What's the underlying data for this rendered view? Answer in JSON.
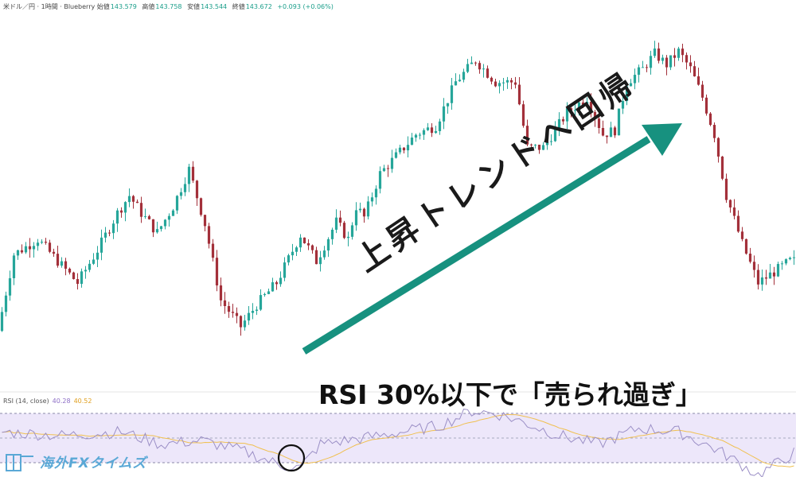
{
  "header": {
    "symbol": "米ドル／円 · 1時間 · Blueberry",
    "open_label": "始値",
    "open": "143.579",
    "high_label": "高値",
    "high": "143.758",
    "low_label": "安値",
    "low": "143.544",
    "close_label": "終値",
    "close": "143.672",
    "change": "+0.093 (+0.06%)"
  },
  "rsi_header": {
    "label": "RSI (14, close)",
    "rsi_value": "40.28",
    "ma_value": "40.52"
  },
  "annotations": {
    "trend": "上昇トレンドへ回帰",
    "rsi": "RSI 30%以下で「売られ過ぎ」"
  },
  "logo": {
    "text": "海外FXタイムズ"
  },
  "colors": {
    "up": "#26a69a",
    "down": "#a3303a",
    "rsi_line": "#9b8fc6",
    "rsi_ma": "#f0c050",
    "rsi_band": "#ede7fa",
    "arrow": "#17917f"
  },
  "chart_data": {
    "type": "candlestick",
    "key_prices_x": [
      0,
      4,
      10,
      20,
      25,
      30,
      33,
      36,
      40,
      44,
      48,
      52,
      56,
      61,
      65,
      70,
      76,
      80,
      85,
      88,
      90,
      92,
      96,
      100,
      105,
      110,
      115,
      120,
      125,
      130,
      133,
      137,
      140,
      143,
      148,
      152,
      155,
      158,
      162,
      165,
      168,
      171,
      174,
      177,
      180,
      183,
      187,
      191,
      195,
      199
    ],
    "key_prices_y": [
      142.98,
      143.33,
      143.4,
      143.2,
      143.35,
      143.52,
      143.6,
      143.52,
      143.43,
      143.55,
      143.72,
      143.47,
      143.12,
      143.0,
      143.1,
      143.2,
      143.42,
      143.3,
      143.48,
      143.4,
      143.55,
      143.5,
      143.7,
      143.78,
      143.88,
      143.92,
      144.12,
      144.22,
      144.12,
      144.12,
      143.82,
      143.82,
      143.9,
      143.98,
      144.05,
      143.88,
      143.9,
      144.12,
      144.18,
      144.25,
      144.2,
      144.26,
      144.18,
      144.05,
      143.88,
      143.6,
      143.38,
      143.2,
      143.25,
      143.3
    ],
    "rsi_key_x": [
      0,
      15,
      30,
      40,
      50,
      60,
      70,
      75,
      80,
      95,
      110,
      118,
      124,
      130,
      140,
      150,
      160,
      170,
      180,
      190,
      199
    ],
    "rsi_key_y": [
      55,
      52,
      55,
      45,
      48,
      40,
      28,
      26,
      45,
      52,
      60,
      72,
      70,
      64,
      52,
      45,
      58,
      55,
      40,
      20,
      38
    ],
    "rsi_levels": [
      70,
      50,
      30
    ],
    "highlight": "RSI 30%以下"
  }
}
